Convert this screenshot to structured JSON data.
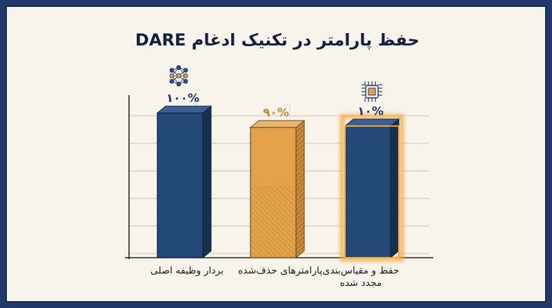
{
  "chart_data": {
    "type": "bar",
    "title": "حفظ پارامتر در تکنیک ادغام DARE",
    "categories": [
      "بردار وظیفه اصلی",
      "پارامترهای حذف‌شده",
      "حفظ و مقیاس‌بندی مجدد شده"
    ],
    "values": [
      100,
      90,
      10
    ],
    "value_labels": [
      "۱۰۰%",
      "۹۰%",
      "۱۰%"
    ],
    "xlabel": "",
    "ylabel": "",
    "grid": true,
    "legend": "none"
  },
  "icons": [
    "neural-network-icon",
    "microchip-icon"
  ],
  "colors": {
    "background_frame": "#1f3a66",
    "panel": "#f8f4ec",
    "bar_blue": "#234878",
    "bar_blue_dark": "#16304f",
    "bar_orange": "#e3a24a",
    "bar_orange_dark": "#c17f2e",
    "glow": "#f2a73b"
  }
}
